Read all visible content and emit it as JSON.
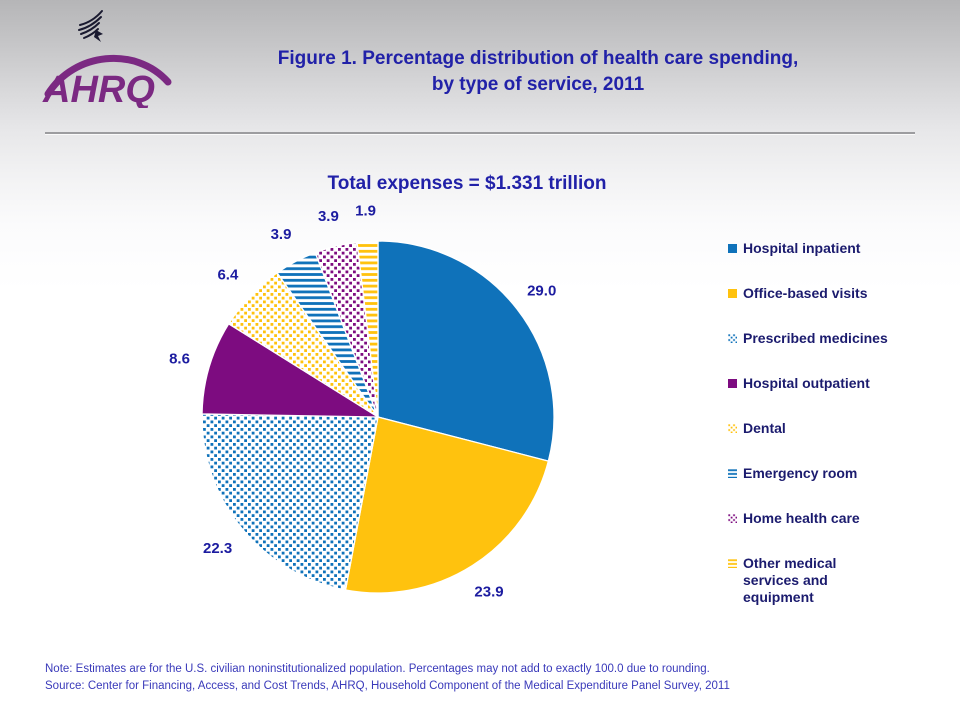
{
  "header": {
    "logo_text": "AHRQ",
    "eagle_icon": "hhs-eagle-icon",
    "title_line1": "Figure 1. Percentage distribution of health care spending,",
    "title_line2": "by type of service, 2011"
  },
  "subtitle": "Total expenses = $1.331 trillion",
  "chart_data": {
    "type": "pie",
    "title": "Total expenses = $1.331 trillion",
    "start_angle_deg": 0,
    "direction": "clockwise",
    "data_labels": "outside, one decimal",
    "legend_position": "right",
    "colors": {
      "blue": "#0F72BA",
      "gold": "#FFC20E",
      "purple": "#7D0C80",
      "label_text": "#1C1CA0"
    },
    "slices": [
      {
        "label": "Hospital inpatient",
        "value": 29.0,
        "fill": "solid",
        "color": "#0F72BA",
        "legend_lines": [
          "Hospital inpatient"
        ]
      },
      {
        "label": "Office-based visits",
        "value": 23.9,
        "fill": "solid",
        "color": "#FFC20E",
        "legend_lines": [
          "Office-based visits"
        ]
      },
      {
        "label": "Prescribed medicines",
        "value": 22.3,
        "fill": "dots",
        "color": "#0F72BA",
        "legend_lines": [
          "Prescribed medicines"
        ]
      },
      {
        "label": "Hospital outpatient",
        "value": 8.6,
        "fill": "solid",
        "color": "#7D0C80",
        "legend_lines": [
          "Hospital outpatient"
        ]
      },
      {
        "label": "Dental",
        "value": 6.4,
        "fill": "dots",
        "color": "#FFC20E",
        "legend_lines": [
          "Dental"
        ]
      },
      {
        "label": "Emergency room",
        "value": 3.9,
        "fill": "hlines",
        "color": "#0F72BA",
        "legend_lines": [
          "Emergency room"
        ]
      },
      {
        "label": "Home health care",
        "value": 3.9,
        "fill": "dots",
        "color": "#7D0C80",
        "legend_lines": [
          "Home health care"
        ]
      },
      {
        "label": "Other medical services and equipment",
        "value": 1.9,
        "fill": "hlines",
        "color": "#FFC20E",
        "legend_lines": [
          "Other medical",
          "services and",
          "equipment"
        ]
      }
    ]
  },
  "footer": {
    "note": "Note: Estimates are for the U.S. civilian noninstitutionalized population. Percentages may not add to exactly 100.0 due to rounding.",
    "source": "Source: Center for Financing, Access, and Cost Trends, AHRQ, Household Component of the Medical Expenditure Panel Survey,  2011"
  }
}
